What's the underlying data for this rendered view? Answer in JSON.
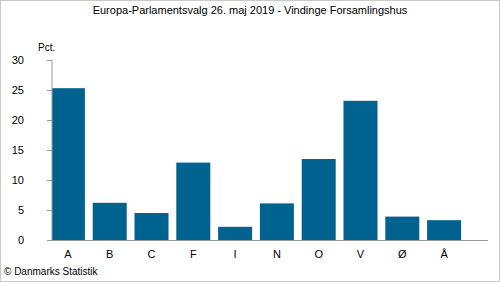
{
  "chart_data": {
    "type": "bar",
    "title": "Europa-Parlamentsvalg 26. maj 2019 - Vindinge Forsamlingshus",
    "y_label": "Pct.",
    "source": "© Danmarks Statistik",
    "categories": [
      "A",
      "B",
      "C",
      "F",
      "I",
      "N",
      "O",
      "V",
      "Ø",
      "Å"
    ],
    "values": [
      25.3,
      6.2,
      4.5,
      12.9,
      2.2,
      6.1,
      13.5,
      23.2,
      3.9,
      3.3
    ],
    "color": "#00628f",
    "ylim": [
      0,
      30
    ],
    "yticks": [
      0,
      5,
      10,
      15,
      20,
      25,
      30
    ],
    "grid": false
  }
}
